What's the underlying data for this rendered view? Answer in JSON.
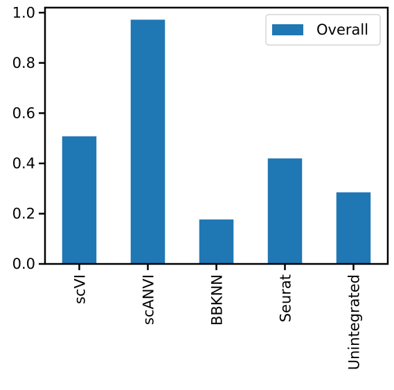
{
  "chart_data": {
    "type": "bar",
    "categories": [
      "scVI",
      "scANVI",
      "BBKNN",
      "Seurat",
      "Unintegrated"
    ],
    "series": [
      {
        "name": "Overall",
        "values": [
          0.508,
          0.972,
          0.177,
          0.42,
          0.285
        ],
        "color": "#1f77b4"
      }
    ],
    "title": "",
    "xlabel": "",
    "ylabel": "",
    "ylim": [
      0.0,
      1.02
    ],
    "yticks": [
      0.0,
      0.2,
      0.4,
      0.6,
      0.8,
      1.0
    ],
    "ytick_labels": [
      "0.0",
      "0.2",
      "0.4",
      "0.6",
      "0.8",
      "1.0"
    ],
    "legend": {
      "position": "top-right",
      "entries": [
        "Overall"
      ]
    },
    "grid": false,
    "xtick_rotation": "vertical"
  }
}
